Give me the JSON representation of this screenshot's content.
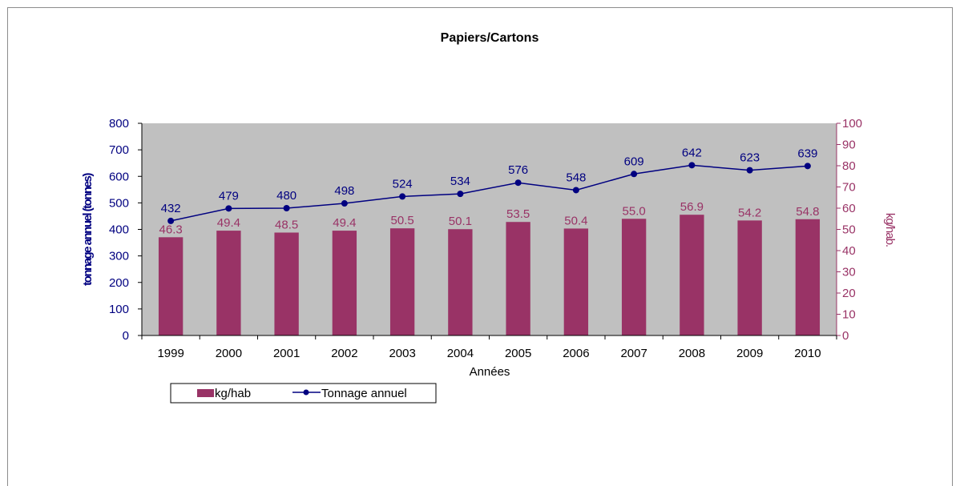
{
  "chart_data": {
    "type": "bar+line",
    "title": "Papiers/Cartons",
    "xlabel": "Années",
    "ylabel_left": "tonnage annuel (tonnes)",
    "ylabel_right": "kg/hab.",
    "categories": [
      "1999",
      "2000",
      "2001",
      "2002",
      "2003",
      "2004",
      "2005",
      "2006",
      "2007",
      "2008",
      "2009",
      "2010"
    ],
    "series": [
      {
        "name": "kg/hab",
        "type": "bar",
        "axis": "right",
        "values": [
          "46.3",
          "49.4",
          "48.5",
          "49.4",
          "50.5",
          "50.1",
          "53.5",
          "50.4",
          "55.0",
          "56.9",
          "54.2",
          "54.8"
        ]
      },
      {
        "name": "Tonnage annuel",
        "type": "line",
        "axis": "left",
        "values": [
          432,
          479,
          480,
          498,
          524,
          534,
          576,
          548,
          609,
          642,
          623,
          639
        ]
      }
    ],
    "ylim_left": [
      0,
      800
    ],
    "ylim_right": [
      0,
      100
    ],
    "left_ticks": [
      "0",
      "100",
      "200",
      "300",
      "400",
      "500",
      "600",
      "700",
      "800"
    ],
    "right_ticks": [
      "0",
      "10",
      "20",
      "30",
      "40",
      "50",
      "60",
      "70",
      "80",
      "90",
      "100"
    ],
    "grid": false,
    "legend_position": "bottom-left",
    "colors": {
      "bar": "#993366",
      "line": "#000080",
      "plot_bg": "#c0c0c0",
      "right_axis": "#993366"
    }
  }
}
